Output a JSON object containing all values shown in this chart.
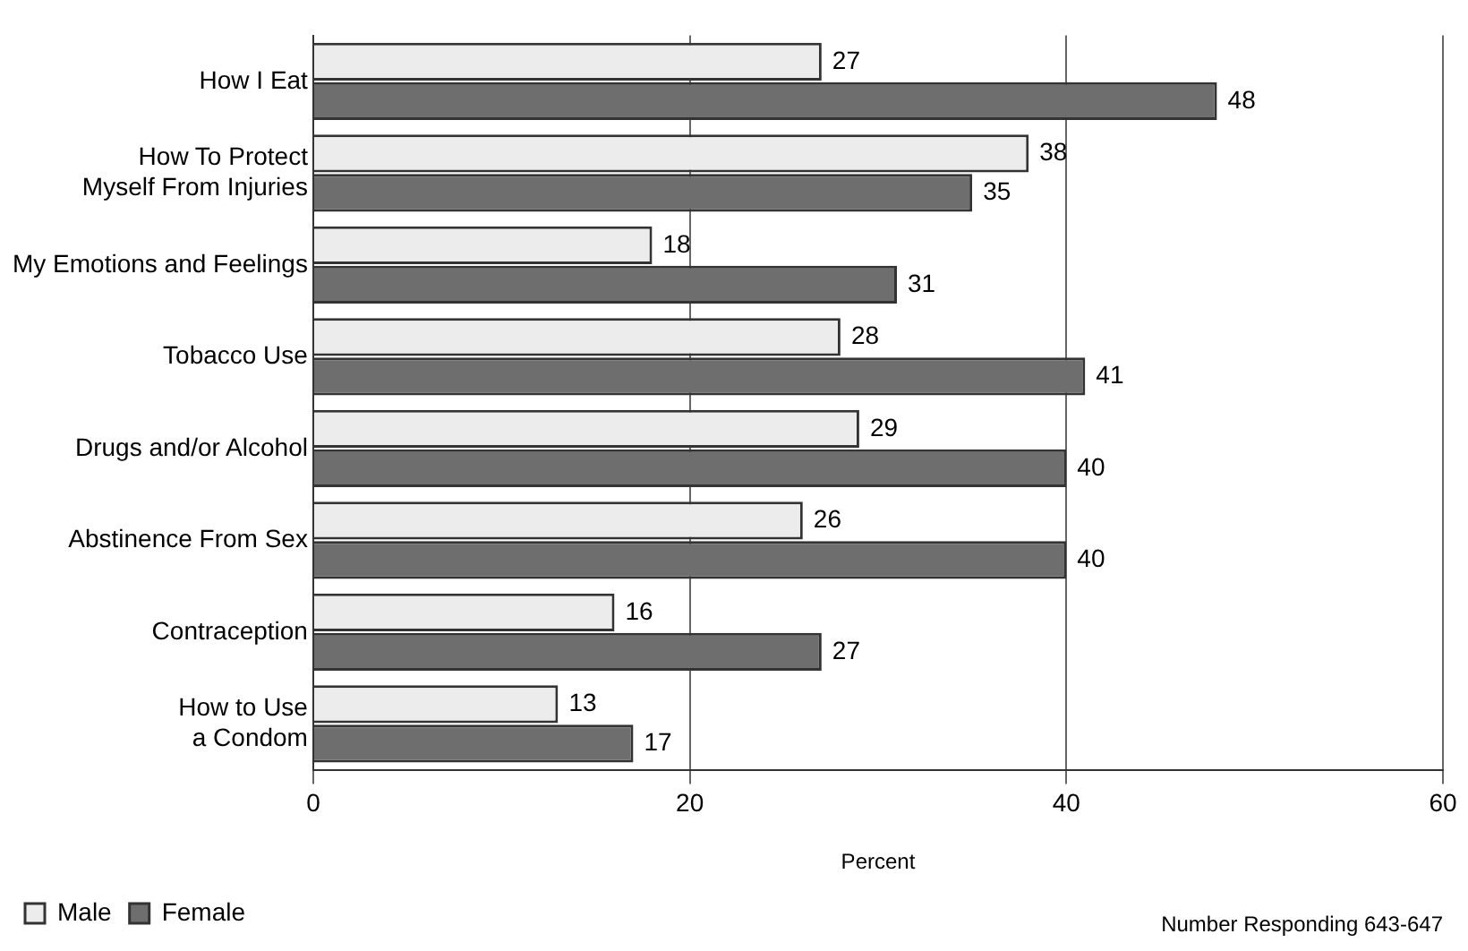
{
  "chart_data": {
    "type": "bar",
    "orientation": "horizontal",
    "xlabel": "Percent",
    "categories": [
      "How I Eat",
      "How To Protect\nMyself From Injuries",
      "My Emotions and Feelings",
      "Tobacco Use",
      "Drugs and/or Alcohol",
      "Abstinence From Sex",
      "Contraception",
      "How to Use\na Condom"
    ],
    "series": [
      {
        "name": "Male",
        "color": "#ececec",
        "values": [
          27,
          38,
          18,
          28,
          29,
          26,
          16,
          13
        ]
      },
      {
        "name": "Female",
        "color": "#6e6e6e",
        "values": [
          48,
          35,
          31,
          41,
          40,
          40,
          27,
          17
        ]
      }
    ],
    "xlim": [
      0,
      60
    ],
    "xticks": [
      0,
      20,
      40,
      60
    ],
    "grid": "x",
    "legend": "bottom left",
    "data_labels": true,
    "annotations": [
      "Number Responding  643-647"
    ]
  }
}
